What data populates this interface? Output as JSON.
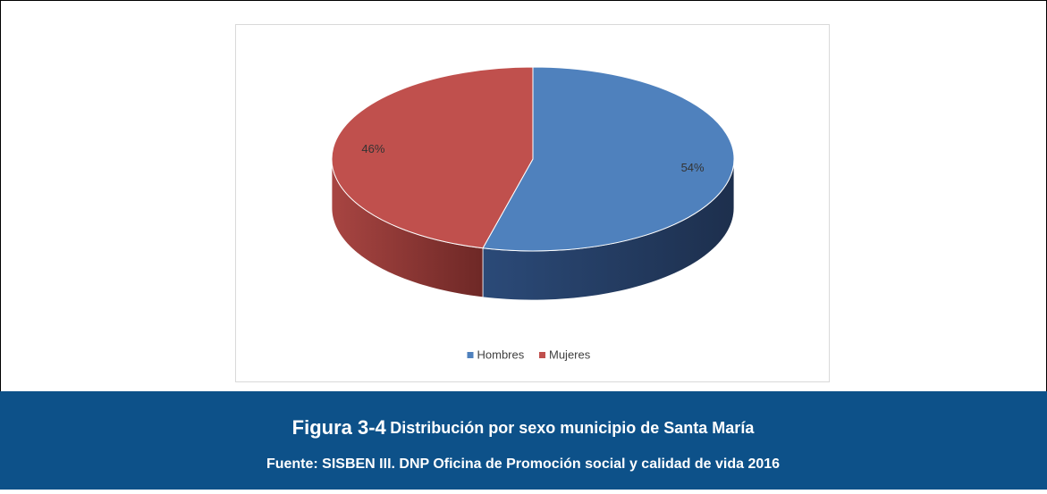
{
  "chart_data": {
    "type": "pie",
    "categories": [
      "Hombres",
      "Mujeres"
    ],
    "values": [
      54,
      46
    ],
    "value_labels": [
      "54%",
      "46%"
    ],
    "colors": [
      "#4f81bd",
      "#c0504d"
    ],
    "legend": "bottom"
  },
  "caption": {
    "label": "Figura 3-4",
    "title": "Distribución por sexo municipio de Santa María",
    "source": "Fuente: SISBEN III. DNP Oficina de Promoción social y calidad de vida 2016"
  }
}
